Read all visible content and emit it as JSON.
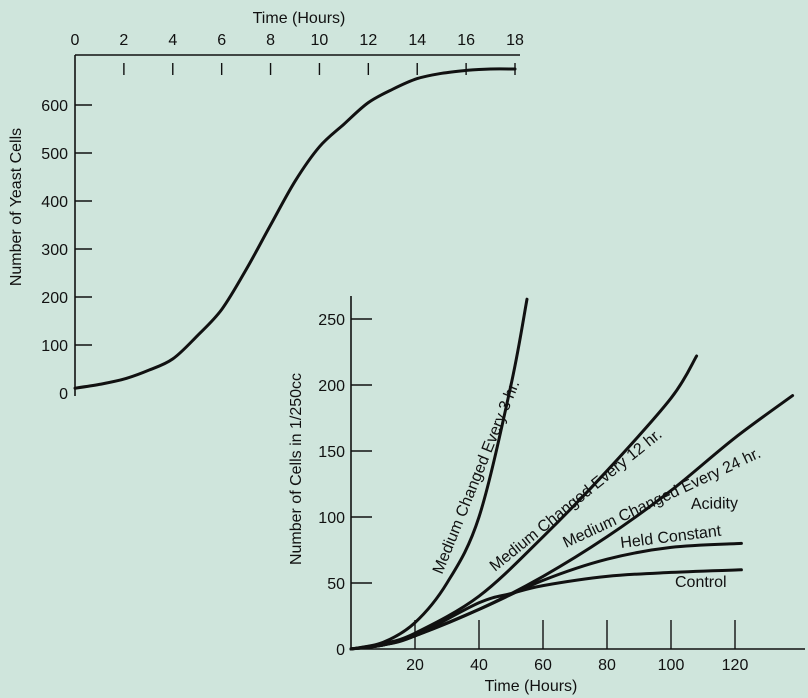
{
  "page": {
    "background": "#cfe5dc",
    "ink": "#111111"
  },
  "chart_data": [
    {
      "type": "line",
      "title": "",
      "xlabel": "Time (Hours)",
      "ylabel": "Number of Yeast Cells",
      "xlim": [
        0,
        18
      ],
      "ylim": [
        0,
        680
      ],
      "x_ticks": [
        0,
        2,
        4,
        6,
        8,
        10,
        12,
        14,
        16,
        18
      ],
      "y_ticks": [
        0,
        100,
        200,
        300,
        400,
        500,
        600
      ],
      "x_axis_position": "top",
      "grid": false,
      "series": [
        {
          "x": [
            0,
            1,
            2,
            3,
            4,
            5,
            6,
            7,
            8,
            9,
            10,
            11,
            12,
            13,
            14,
            15,
            16,
            17,
            18
          ],
          "y": [
            10,
            18,
            29,
            47,
            71,
            119,
            174,
            257,
            350,
            441,
            513,
            560,
            605,
            633,
            655,
            666,
            672,
            675,
            675
          ]
        }
      ]
    },
    {
      "type": "line",
      "title": "",
      "xlabel": "Time (Hours)",
      "ylabel": "Number of Cells in 1/250cc",
      "xlim": [
        0,
        140
      ],
      "ylim": [
        0,
        260
      ],
      "x_ticks": [
        0,
        20,
        40,
        60,
        80,
        100,
        120
      ],
      "x_tick_labels": [
        "",
        "20",
        "40",
        "60",
        "80",
        "100",
        "120"
      ],
      "y_ticks": [
        0,
        50,
        100,
        150,
        200,
        250
      ],
      "grid": false,
      "series": [
        {
          "name": "Medium Changed Every 3 hr.",
          "x": [
            0,
            10,
            20,
            30,
            40,
            50,
            55
          ],
          "y": [
            0,
            5,
            20,
            50,
            100,
            200,
            265
          ]
        },
        {
          "name": "Medium Changed Every 12 hr.",
          "x": [
            0,
            10,
            20,
            40,
            60,
            80,
            100,
            108
          ],
          "y": [
            0,
            4,
            12,
            40,
            85,
            135,
            190,
            222
          ]
        },
        {
          "name": "Medium Changed Every 24 hr.",
          "x": [
            0,
            10,
            20,
            40,
            60,
            80,
            100,
            120,
            138
          ],
          "y": [
            0,
            3,
            10,
            30,
            55,
            85,
            120,
            160,
            192
          ]
        },
        {
          "name": "Acidity Held Constant",
          "x": [
            0,
            10,
            20,
            40,
            60,
            80,
            100,
            122
          ],
          "y": [
            0,
            3,
            10,
            30,
            52,
            68,
            77,
            80
          ]
        },
        {
          "name": "Control",
          "x": [
            0,
            10,
            20,
            40,
            50,
            60,
            80,
            100,
            122
          ],
          "y": [
            0,
            3,
            10,
            35,
            42,
            48,
            55,
            58,
            60
          ]
        }
      ],
      "annotations": {
        "curve_labels": [
          "Medium Changed Every 3 hr.",
          "Medium Changed Every 12 hr.",
          "Medium Changed Every 24 hr.",
          "Acidity",
          "Held Constant",
          "Control"
        ]
      }
    }
  ]
}
